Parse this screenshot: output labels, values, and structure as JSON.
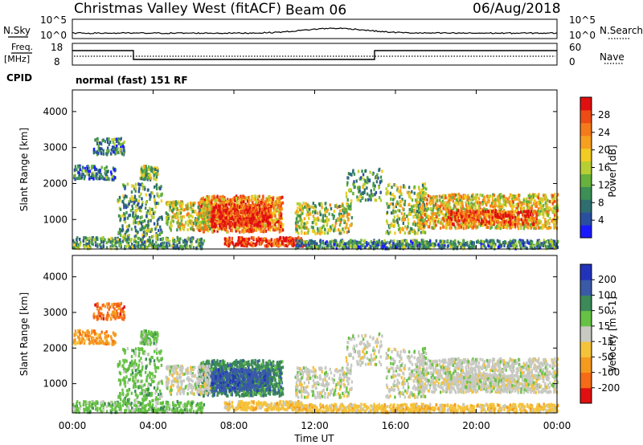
{
  "header": {
    "radar": "Christmas Valley West (fitACF)",
    "beam": "Beam 06",
    "date": "06/Aug/2018"
  },
  "nsky_panel": {
    "left_label": "N.Sky",
    "left_ticks": [
      "10^5",
      "10^0"
    ],
    "right_label": "N.Search",
    "right_ticks": [
      "10^5",
      "10^0"
    ]
  },
  "freq_panel": {
    "left_label_top": "Freq.",
    "left_label_unit": "[MHz]",
    "left_ticks": [
      "18",
      "8"
    ],
    "right_label": "Nave",
    "right_ticks": [
      "60",
      "0"
    ]
  },
  "cpid_panel": {
    "label": "CPID",
    "text": "normal (fast) 151 RF"
  },
  "chart_data": [
    {
      "type": "heatmap",
      "name": "power",
      "ylabel": "Slant Range [km]",
      "ylim": [
        180,
        4600
      ],
      "yticks": [
        "1000",
        "2000",
        "3000",
        "4000"
      ],
      "ytick_values": [
        1000,
        2000,
        3000,
        4000
      ],
      "xlim_hours": [
        0,
        24
      ],
      "colorbar": {
        "label": "Power [dB]",
        "ticks": [
          "4",
          "8",
          "12",
          "16",
          "20",
          "24",
          "28"
        ],
        "range": [
          0,
          30
        ],
        "colors": [
          "#1a1aff",
          "#2a4fa0",
          "#2f6e70",
          "#3c8f55",
          "#66b23c",
          "#b8cf34",
          "#f2cc22",
          "#f7a020",
          "#f57a1c",
          "#ee4c14",
          "#e01010"
        ]
      }
    },
    {
      "type": "heatmap",
      "name": "velocity",
      "ylabel": "Slant Range [km]",
      "ylim": [
        180,
        4600
      ],
      "yticks": [
        "1000",
        "2000",
        "3000",
        "4000"
      ],
      "ytick_values": [
        1000,
        2000,
        3000,
        4000
      ],
      "xlabel": "Time UT",
      "xticks": [
        "00:00",
        "04:00",
        "08:00",
        "12:00",
        "16:00",
        "20:00",
        "00:00"
      ],
      "xtick_hours": [
        0,
        4,
        8,
        12,
        16,
        20,
        24
      ],
      "xlim_hours": [
        0,
        24
      ],
      "colorbar": {
        "label": "Velocity [m s-1]",
        "ticks": [
          "200",
          "100",
          "50",
          "15",
          "-15",
          "-50",
          "-100",
          "-200"
        ],
        "colors": [
          "#2233bb",
          "#3a5aa8",
          "#3b8a57",
          "#66c244",
          "#c9c9c4",
          "#f5c33a",
          "#f59a1f",
          "#f56b16",
          "#e01010"
        ]
      }
    }
  ]
}
